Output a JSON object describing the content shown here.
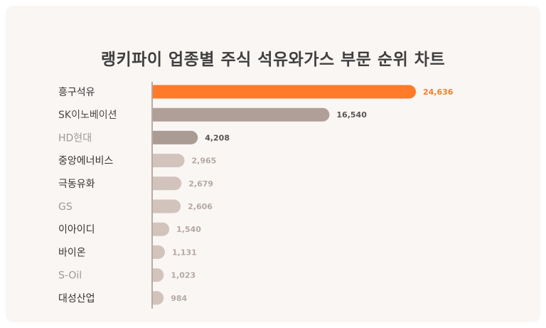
{
  "chart_data": {
    "type": "bar",
    "orientation": "horizontal",
    "title": "랭키파이 업종별 주식 석유와가스 부문 순위 차트",
    "categories": [
      "흥구석유",
      "SK이노베이션",
      "HD현대",
      "중앙에너비스",
      "극동유화",
      "GS",
      "이아이디",
      "바이온",
      "S-Oil",
      "대성산업"
    ],
    "values": [
      24636,
      16540,
      4208,
      2965,
      2679,
      2606,
      1540,
      1131,
      1023,
      984
    ],
    "value_labels": [
      "24,636",
      "16,540",
      "4,208",
      "2,965",
      "2,679",
      "2,606",
      "1,540",
      "1,131",
      "1,023",
      "984"
    ],
    "bar_colors": [
      "#ff7a29",
      "#b09f98",
      "#aa9b94",
      "#d2c4bd",
      "#d2c4bd",
      "#d2c4bd",
      "#d2c4bd",
      "#d2c4bd",
      "#d2c4bd",
      "#d2c4bd"
    ],
    "label_colors": [
      "#333333",
      "#4a4a4a",
      "#9a9a9a",
      "#333333",
      "#333333",
      "#9a9a9a",
      "#333333",
      "#333333",
      "#9a9a9a",
      "#333333"
    ],
    "value_colors": [
      "#ff7a29",
      "#555555",
      "#555555",
      "#b5a9a4",
      "#b5a9a4",
      "#b5a9a4",
      "#b5a9a4",
      "#b5a9a4",
      "#b5a9a4",
      "#b5a9a4"
    ],
    "xlim": [
      0,
      24636
    ],
    "grid": false,
    "legend": "none"
  },
  "colors": {
    "background": "#faf6f4",
    "axis": "#b7aaa4",
    "highlight": "#ff7a29"
  }
}
